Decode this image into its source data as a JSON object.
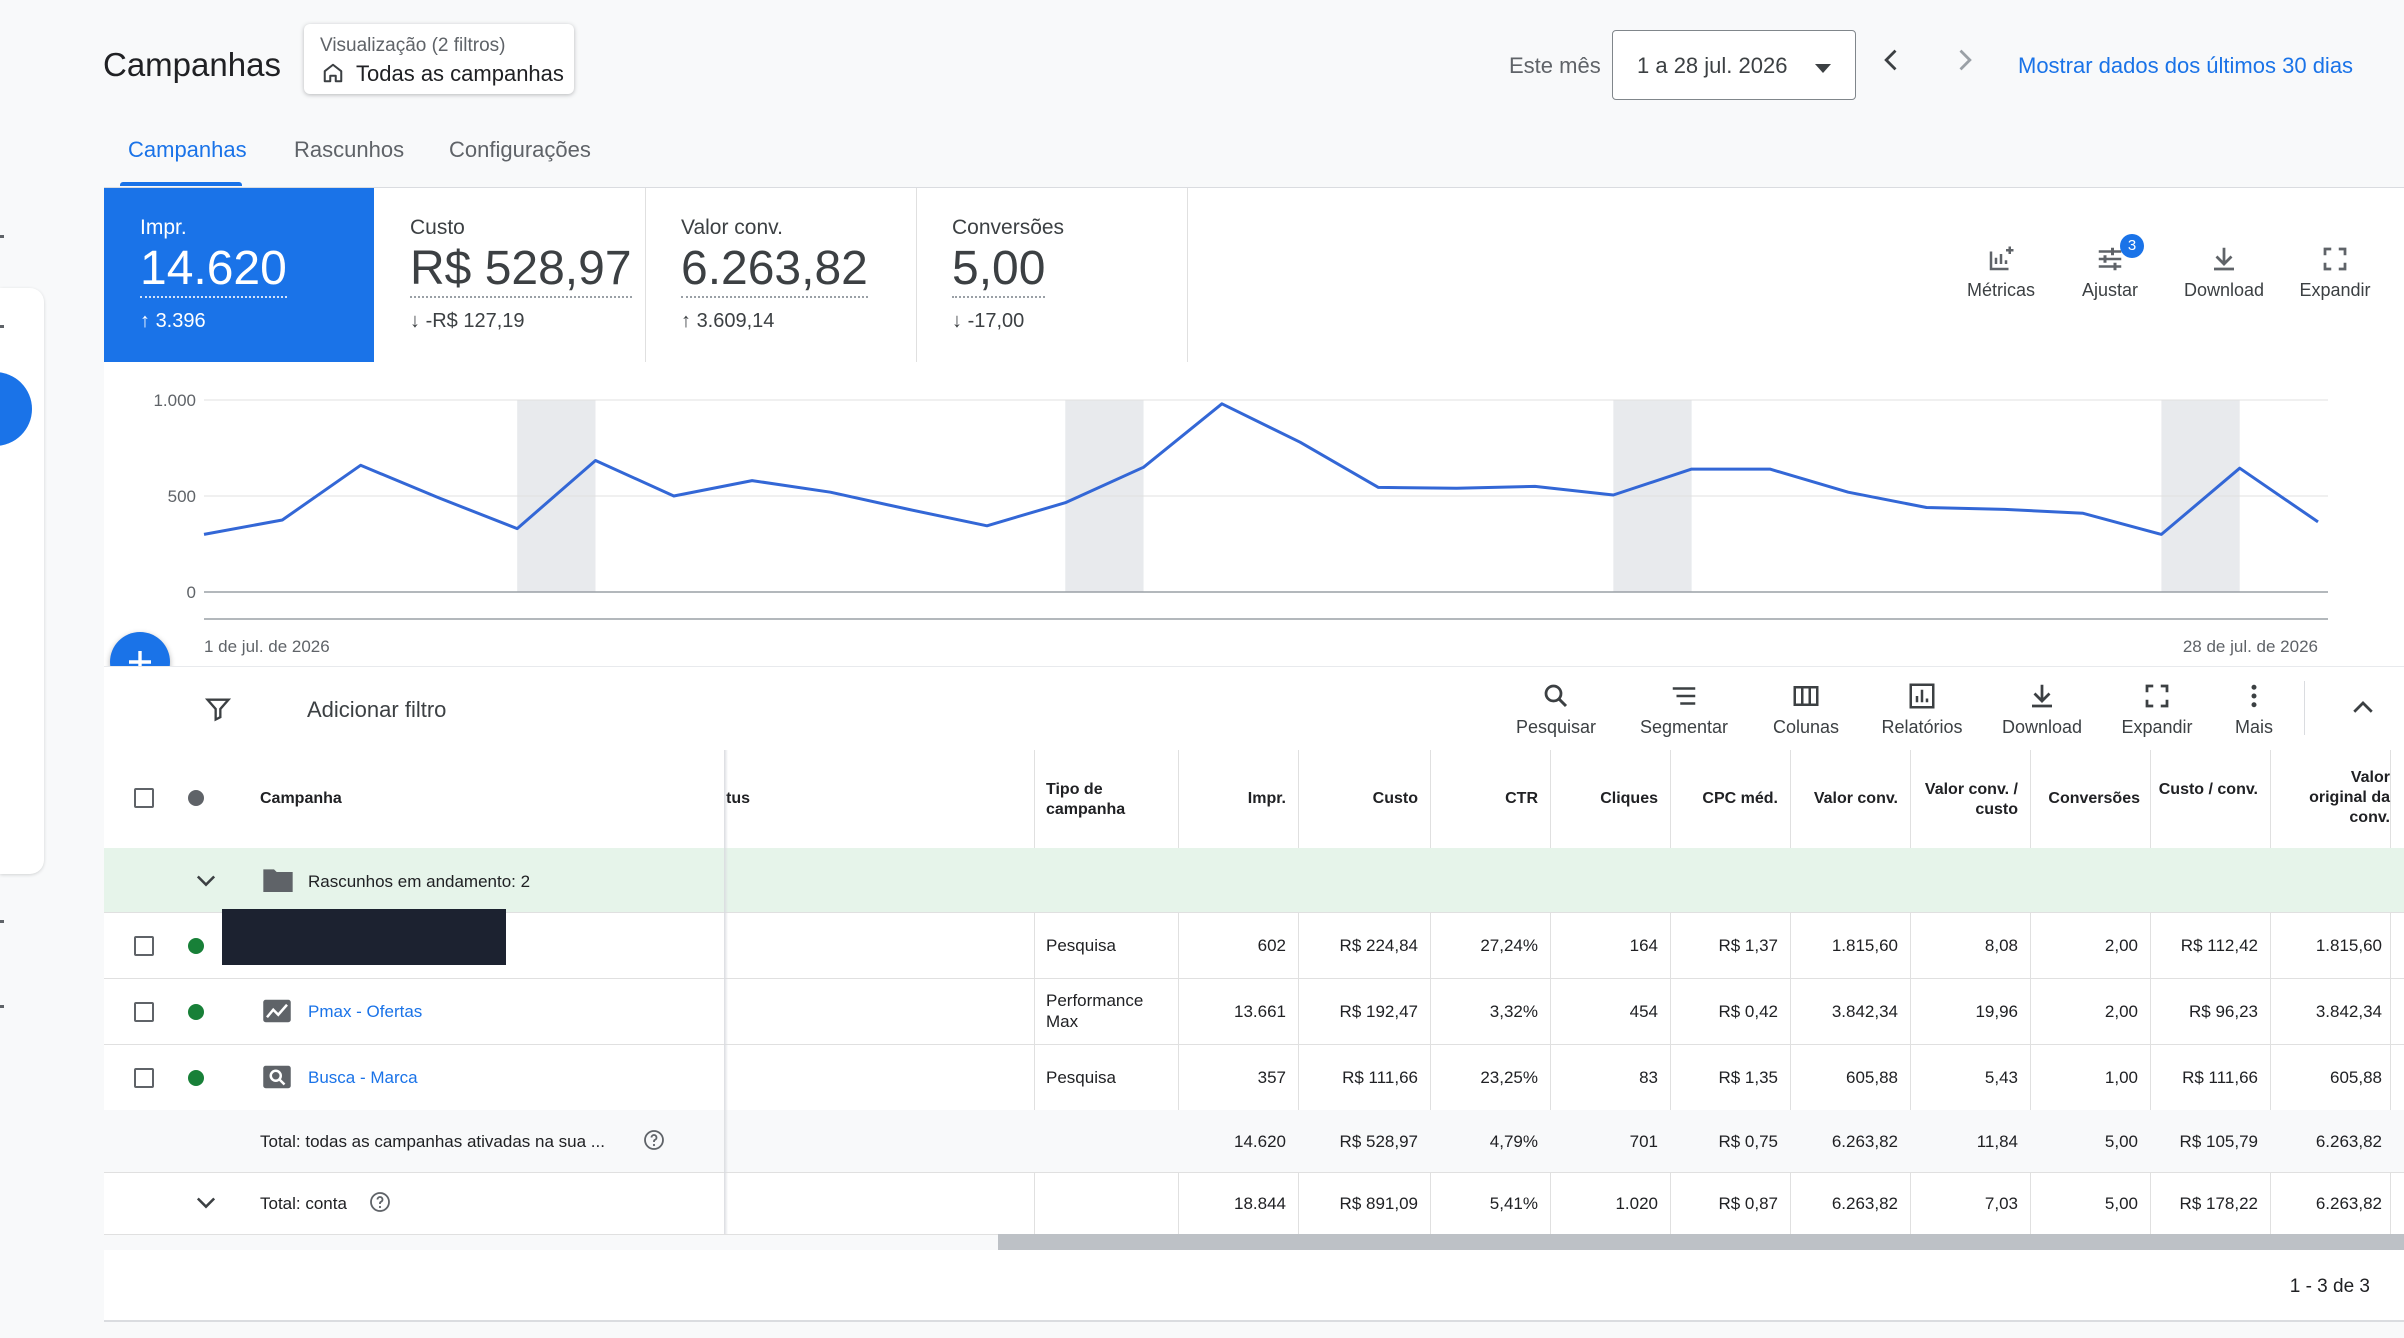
{
  "header": {
    "title": "Campanhas",
    "view_label": "Visualização (2 filtros)",
    "view_value": "Todas as campanhas",
    "date_preset": "Este mês",
    "date_range": "1 a 28 jul. 2026",
    "show_last_30": "Mostrar dados dos últimos 30 dias"
  },
  "tabs": [
    {
      "label": "Campanhas",
      "active": true
    },
    {
      "label": "Rascunhos"
    },
    {
      "label": "Configurações"
    }
  ],
  "summary": {
    "metrics": [
      {
        "name": "Impr.",
        "value": "14.620",
        "delta": "3.396",
        "direction": "up",
        "selected": true
      },
      {
        "name": "Custo",
        "value": "R$ 528,97",
        "delta": "-R$ 127,19",
        "direction": "down"
      },
      {
        "name": "Valor conv.",
        "value": "6.263,82",
        "delta": "3.609,14",
        "direction": "up"
      },
      {
        "name": "Conversões",
        "value": "5,00",
        "delta": "-17,00",
        "direction": "down"
      }
    ],
    "tools": [
      {
        "label": "Métricas",
        "icon": "metrics-add-icon"
      },
      {
        "label": "Ajustar",
        "icon": "tune-icon",
        "badge": "3"
      },
      {
        "label": "Download",
        "icon": "download-icon"
      },
      {
        "label": "Expandir",
        "icon": "fullscreen-icon"
      }
    ]
  },
  "chart_data": {
    "type": "line",
    "series": [
      {
        "values": [
          300,
          375,
          660,
          490,
          330,
          685,
          500,
          580,
          520,
          430,
          345,
          465,
          650,
          980,
          780,
          545,
          540,
          550,
          505,
          640,
          640,
          520,
          440,
          430,
          410,
          300,
          645,
          365
        ]
      }
    ],
    "y_ticks": [
      "1.000",
      "500",
      "0"
    ],
    "ylim": [
      0,
      1000
    ],
    "x_start_label": "1 de jul. de 2026",
    "x_end_label": "28 de jul. de 2026",
    "weekend_bands": [
      [
        4,
        5
      ],
      [
        11,
        12
      ],
      [
        18,
        19
      ],
      [
        25,
        26
      ]
    ],
    "line_color": "#3367d6"
  },
  "toolbar": {
    "filter_label": "Adicionar filtro",
    "tools": [
      {
        "label": "Pesquisar",
        "icon": "search-icon"
      },
      {
        "label": "Segmentar",
        "icon": "segment-icon"
      },
      {
        "label": "Colunas",
        "icon": "columns-icon"
      },
      {
        "label": "Relatórios",
        "icon": "reports-icon"
      },
      {
        "label": "Download",
        "icon": "download-icon"
      },
      {
        "label": "Expandir",
        "icon": "fullscreen-icon"
      },
      {
        "label": "Mais",
        "icon": "more-vert-icon"
      }
    ]
  },
  "table": {
    "headers": {
      "campanha": "Campanha",
      "status": "tus",
      "tipo": "Tipo de campanha",
      "impr": "Impr.",
      "custo": "Custo",
      "ctr": "CTR",
      "cliques": "Cliques",
      "cpc": "CPC méd.",
      "valor": "Valor conv.",
      "valor_custo": "Valor conv. / custo",
      "conversoes": "Conversões",
      "custo_conv": "Custo / conv.",
      "valor_orig": "Valor original da conv."
    },
    "draft_label": "Rascunhos em andamento: 2",
    "rows": [
      {
        "name": "",
        "redacted": true,
        "type": "Pesquisa",
        "impr": "602",
        "custo": "R$ 224,84",
        "ctr": "27,24%",
        "cliques": "164",
        "cpc": "R$ 1,37",
        "valor": "1.815,60",
        "valor_custo": "8,08",
        "conversoes": "2,00",
        "custo_conv": "R$ 112,42",
        "valor_orig": "1.815,60"
      },
      {
        "name": "Pmax - Ofertas",
        "icon": "performance-max-icon",
        "type": "Performance Max",
        "impr": "13.661",
        "custo": "R$ 192,47",
        "ctr": "3,32%",
        "cliques": "454",
        "cpc": "R$ 0,42",
        "valor": "3.842,34",
        "valor_custo": "19,96",
        "conversoes": "2,00",
        "custo_conv": "R$ 96,23",
        "valor_orig": "3.842,34"
      },
      {
        "name": "Busca - Marca",
        "icon": "search-campaign-icon",
        "type": "Pesquisa",
        "impr": "357",
        "custo": "R$ 111,66",
        "ctr": "23,25%",
        "cliques": "83",
        "cpc": "R$ 1,35",
        "valor": "605,88",
        "valor_custo": "5,43",
        "conversoes": "1,00",
        "custo_conv": "R$ 111,66",
        "valor_orig": "605,88"
      }
    ],
    "total_active": {
      "label": "Total: todas as campanhas ativadas na sua ...",
      "impr": "14.620",
      "custo": "R$ 528,97",
      "ctr": "4,79%",
      "cliques": "701",
      "cpc": "R$ 0,75",
      "valor": "6.263,82",
      "valor_custo": "11,84",
      "conversoes": "5,00",
      "custo_conv": "R$ 105,79",
      "valor_orig": "6.263,82"
    },
    "total_account": {
      "label": "Total: conta",
      "impr": "18.844",
      "custo": "R$ 891,09",
      "ctr": "5,41%",
      "cliques": "1.020",
      "cpc": "R$ 0,87",
      "valor": "6.263,82",
      "valor_custo": "7,03",
      "conversoes": "5,00",
      "custo_conv": "R$ 178,22",
      "valor_orig": "6.263,82"
    }
  },
  "pagination": "1 - 3 de 3",
  "colors": {
    "accent": "#1a73e8",
    "status_enabled": "#188038",
    "draft_row": "#e6f4ea"
  }
}
